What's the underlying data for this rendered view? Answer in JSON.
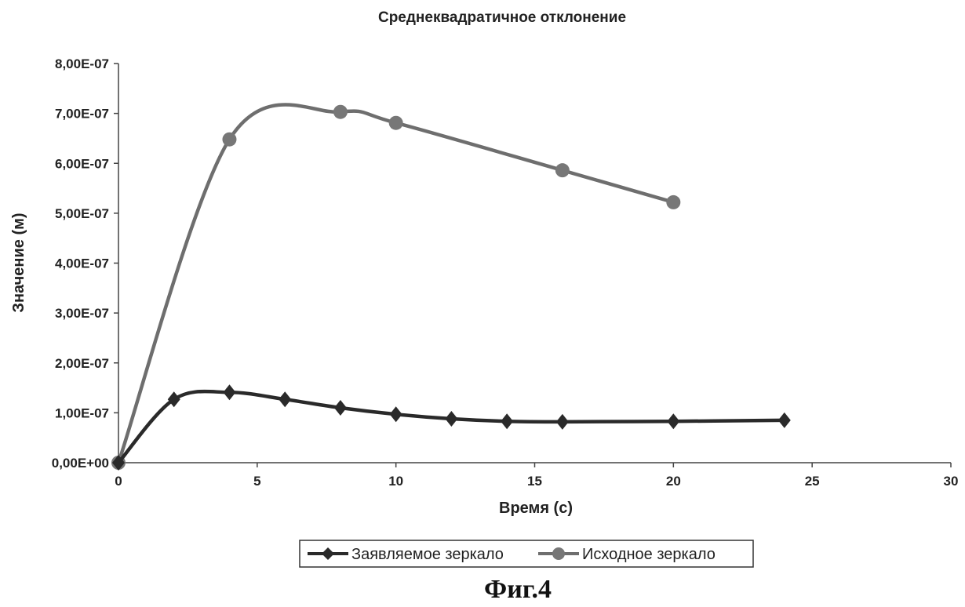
{
  "chart_data": {
    "type": "line",
    "title": "Среднеквадратичное отклонение",
    "xlabel": "Время (с)",
    "ylabel": "Значение (м)",
    "xlim": [
      0,
      30
    ],
    "ylim": [
      0,
      8e-07
    ],
    "x_ticks": [
      0,
      5,
      10,
      15,
      20,
      25,
      30
    ],
    "x_tick_labels": [
      "0",
      "5",
      "10",
      "15",
      "20",
      "25",
      "30"
    ],
    "y_ticks": [
      0,
      1e-07,
      2e-07,
      3e-07,
      4e-07,
      5e-07,
      6e-07,
      7e-07,
      8e-07
    ],
    "y_tick_labels": [
      "0,00E+00",
      "1,00E-07",
      "2,00E-07",
      "3,00E-07",
      "4,00E-07",
      "5,00E-07",
      "6,00E-07",
      "7,00E-07",
      "8,00E-07"
    ],
    "grid": false,
    "legend_position": "bottom",
    "series": [
      {
        "name": "Заявляемое зеркало",
        "marker": "diamond",
        "color": "#2a2a2a",
        "x": [
          0,
          2,
          4,
          6,
          8,
          10,
          12,
          14,
          16,
          20,
          24
        ],
        "y": [
          0,
          1.27e-07,
          1.41e-07,
          1.27e-07,
          1.1e-07,
          9.7e-08,
          8.8e-08,
          8.3e-08,
          8.2e-08,
          8.3e-08,
          8.5e-08
        ]
      },
      {
        "name": "Исходное зеркало",
        "marker": "circle",
        "color": "#6e6e6e",
        "x": [
          0,
          4,
          8,
          10,
          16,
          20
        ],
        "y": [
          0,
          6.48e-07,
          7.03e-07,
          6.81e-07,
          5.86e-07,
          5.22e-07
        ]
      }
    ]
  },
  "caption": "Фиг.4"
}
